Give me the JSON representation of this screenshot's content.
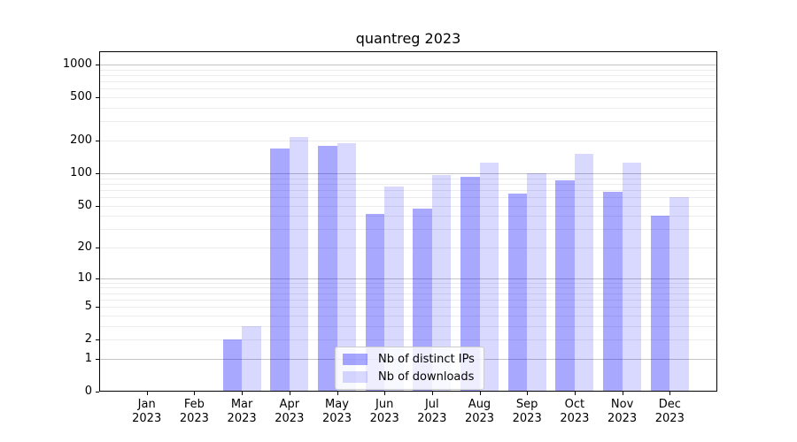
{
  "chart_data": {
    "type": "bar",
    "title": "quantreg 2023",
    "x_months": [
      "Jan",
      "Feb",
      "Mar",
      "Apr",
      "May",
      "Jun",
      "Jul",
      "Aug",
      "Sep",
      "Oct",
      "Nov",
      "Dec"
    ],
    "x_year": "2023",
    "series": [
      {
        "name": "Nb of distinct IPs",
        "color": "rgba(0,0,255,0.34)",
        "values": [
          0,
          0,
          2,
          170,
          180,
          42,
          47,
          93,
          65,
          86,
          67,
          40
        ]
      },
      {
        "name": "Nb of downloads",
        "color": "rgba(0,0,255,0.15)",
        "values": [
          0,
          0,
          3,
          215,
          190,
          75,
          97,
          125,
          100,
          150,
          125,
          60
        ]
      }
    ],
    "y_scale": "log1p",
    "y_ticks": [
      0,
      1,
      2,
      5,
      10,
      20,
      50,
      100,
      200,
      500,
      1000
    ],
    "ylim": [
      0,
      1325
    ],
    "grid": {
      "major_lines": [
        1,
        10,
        100,
        1000
      ],
      "minor_lines": [
        2,
        3,
        4,
        5,
        6,
        7,
        8,
        9,
        20,
        30,
        40,
        50,
        60,
        70,
        80,
        90,
        200,
        300,
        400,
        500,
        600,
        700,
        800,
        900
      ],
      "major_color": "#c4c4c4",
      "minor_color": "#ececec"
    },
    "legend_position": "lower center"
  },
  "colors": {
    "background": "#ffffff",
    "axis": "#000000",
    "text": "#000000"
  }
}
